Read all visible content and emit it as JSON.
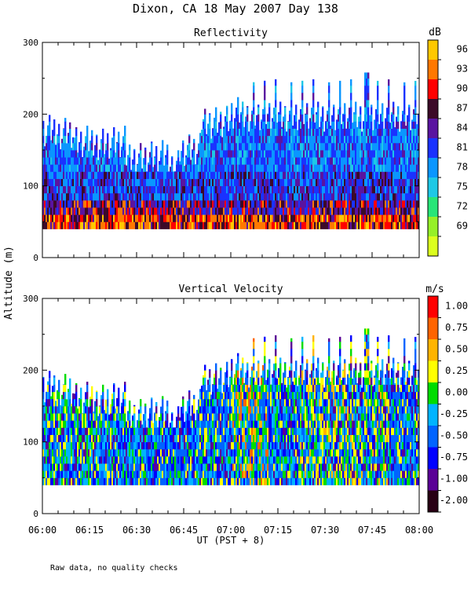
{
  "title": "Dixon, CA 18 May 2007  Day 138",
  "footer_note": "Raw data, no quality checks",
  "y_axis_label": "Altitude (m)",
  "x_axis_label": "UT  (PST + 8)",
  "x_ticks": [
    "06:00",
    "06:15",
    "06:30",
    "06:45",
    "07:00",
    "07:15",
    "07:30",
    "07:45",
    "08:00"
  ],
  "chart_data": [
    {
      "type": "heatmap",
      "title": "Reflectivity",
      "units": "dB",
      "x_range": [
        "06:00",
        "08:00"
      ],
      "ylim": [
        0,
        300
      ],
      "y_ticks": [
        "300",
        "200",
        "100",
        "0"
      ],
      "colorbar_labels": [
        "96",
        "93",
        "90",
        "87",
        "84",
        "81",
        "78",
        "75",
        "72",
        "69"
      ],
      "colorbar_colors": [
        "#ffc800",
        "#ff7800",
        "#ff0000",
        "#3c0a28",
        "#5a14a0",
        "#1a32ff",
        "#0a96ff",
        "#1ec8e6",
        "#28e678",
        "#96f028",
        "#dcff1e"
      ],
      "data_bottom": 40,
      "layers": [
        {
          "name": "low",
          "range": [
            40,
            60
          ],
          "values_db": "87-96"
        },
        {
          "name": "mid",
          "range": [
            60,
            120
          ],
          "values_db": "81-90"
        },
        {
          "name": "upper",
          "range": [
            120,
            260
          ],
          "values_db": "78-84"
        }
      ]
    },
    {
      "type": "heatmap",
      "title": "Vertical Velocity",
      "units": "m/s",
      "x_range": [
        "06:00",
        "08:00"
      ],
      "ylim": [
        0,
        300
      ],
      "y_ticks": [
        "300",
        "200",
        "100",
        "0"
      ],
      "colorbar_labels": [
        "1.00",
        "0.75",
        "0.50",
        "0.25",
        "0.00",
        "-0.25",
        "-0.50",
        "-0.75",
        "-1.00",
        "-2.00"
      ],
      "colorbar_colors": [
        "#ff0000",
        "#ff6400",
        "#ffb400",
        "#ffff00",
        "#00dc00",
        "#00b4ff",
        "#0064ff",
        "#0000ff",
        "#5a0096",
        "#280014"
      ],
      "data_bottom": 40,
      "values_range_ms": [
        -2.0,
        1.0
      ]
    }
  ]
}
